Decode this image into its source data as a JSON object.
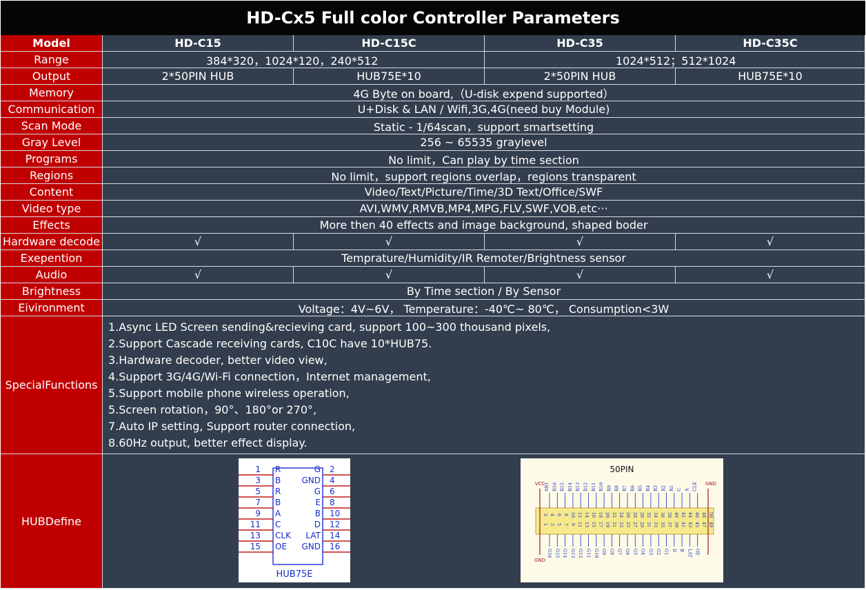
{
  "title": "HD-Cx5 Full color Controller Parameters",
  "header": {
    "model_label": "Model",
    "models": [
      "HD-C15",
      "HD-C15C",
      "HD-C35",
      "HD-C35C"
    ]
  },
  "rows": {
    "range": {
      "label": "Range",
      "left": "384*320，1024*120，240*512",
      "right": "1024*512；512*1024"
    },
    "output": {
      "label": "Output",
      "values": [
        "2*50PIN HUB",
        "HUB75E*10",
        "2*50PIN HUB",
        "HUB75E*10"
      ]
    },
    "memory": {
      "label": "Memory",
      "value": "4G Byte on board,（U-disk expend supported）"
    },
    "communication": {
      "label": "Communication",
      "value": "U+Disk & LAN / Wifi,3G,4G(need buy Module)"
    },
    "scan_mode": {
      "label": "Scan Mode",
      "value": "Static - 1/64scan，support smartsetting"
    },
    "gray_level": {
      "label": "Gray Level",
      "value": "256 ~ 65535 graylevel"
    },
    "programs": {
      "label": "Programs",
      "value": "No limit，Can play by time section"
    },
    "regions": {
      "label": "Regions",
      "value": "No limit，support regions overlap，regions transparent"
    },
    "content": {
      "label": "Content",
      "value": "Video/Text/Picture/Time/3D Text/Office/SWF"
    },
    "video_type": {
      "label": "Video type",
      "value": "AVI,WMV,RMVB,MP4,MPG,FLV,SWF,VOB,etc···"
    },
    "effects": {
      "label": "Effects",
      "value": "More then 40 effects and image background, shaped boder"
    },
    "hardware_decode": {
      "label": "Hardware decode",
      "values": [
        "√",
        "√",
        "√",
        "√"
      ]
    },
    "exepention": {
      "label": "Exepention",
      "value": "Temprature/Humidity/IR Remoter/Brightness sensor"
    },
    "audio": {
      "label": "Audio",
      "values": [
        "√",
        "√",
        "√",
        "√"
      ]
    },
    "brightness": {
      "label": "Brightness",
      "value": "By Time section / By Sensor"
    },
    "eivironment": {
      "label": "Eivironment",
      "value": "Voltage：4V~6V， Temperature：-40℃~ 80℃， Consumption<3W"
    }
  },
  "special": {
    "label": "SpecialFunctions",
    "items": [
      "1.Async LED Screen sending&recieving card, support 100~300 thousand pixels,",
      "2.Support Cascade receiving cards, C10C have 10*HUB75.",
      "3.Hardware decoder, better video view,",
      "4.Support 3G/4G/Wi-Fi connection，Internet management,",
      "5.Support mobile phone wireless operation,",
      "5.Screen rotation，90°、180°or 270°,",
      "7.Auto IP setting, Support router connection,",
      "8.60Hz output, better effect display."
    ]
  },
  "hub": {
    "label": "HUBDefine",
    "hub75e": {
      "caption": "HUB75E",
      "left_pins": [
        "1",
        "3",
        "5",
        "7",
        "9",
        "11",
        "13",
        "15"
      ],
      "right_pins": [
        "2",
        "4",
        "6",
        "8",
        "10",
        "12",
        "14",
        "16"
      ],
      "left_signals": [
        "R",
        "B",
        "R",
        "B",
        "A",
        "C",
        "CLK",
        "OE"
      ],
      "right_signals": [
        "G",
        "GND",
        "G",
        "E",
        "B",
        "D",
        "LAT",
        "GND"
      ]
    },
    "pin50": {
      "caption": "50PIN",
      "vcc": "VCC",
      "gnd_top": "GND",
      "gnd_bottom": "GND",
      "top_labels": [
        "SR1",
        "R16",
        "R15",
        "R14",
        "R13",
        "R12",
        "R11",
        "R10",
        "R9",
        "R8",
        "R7",
        "R6",
        "R5",
        "R4",
        "R3",
        "R2",
        "R1",
        "C",
        "A",
        "CLK"
      ],
      "bottom_labels": [
        "G16",
        "G15",
        "G14",
        "G13",
        "G12",
        "G11",
        "G10",
        "G9",
        "G8",
        "G7",
        "G6",
        "G5",
        "G4",
        "G3",
        "G2",
        "G1",
        "D",
        "B",
        "LAT",
        "OE"
      ],
      "even_pins": [
        "2",
        "4",
        "6",
        "8",
        "10",
        "12",
        "14",
        "16",
        "18",
        "20",
        "22",
        "24",
        "26",
        "28",
        "30",
        "32",
        "34",
        "36",
        "38",
        "40",
        "42",
        "44",
        "46",
        "48",
        "50"
      ],
      "odd_pins": [
        "1",
        "3",
        "5",
        "7",
        "9",
        "11",
        "13",
        "15",
        "17",
        "19",
        "21",
        "23",
        "25",
        "27",
        "29",
        "31",
        "33",
        "35",
        "37",
        "39",
        "41",
        "43",
        "45",
        "47",
        "49"
      ]
    }
  },
  "colors": {
    "label_bg": "#c00000",
    "value_bg": "#323d4d",
    "title_bg": "#050505",
    "grid_line": "#d8dde3",
    "connector_fill": "#f5e98c",
    "diagram_bg": "#fdfbe8"
  }
}
